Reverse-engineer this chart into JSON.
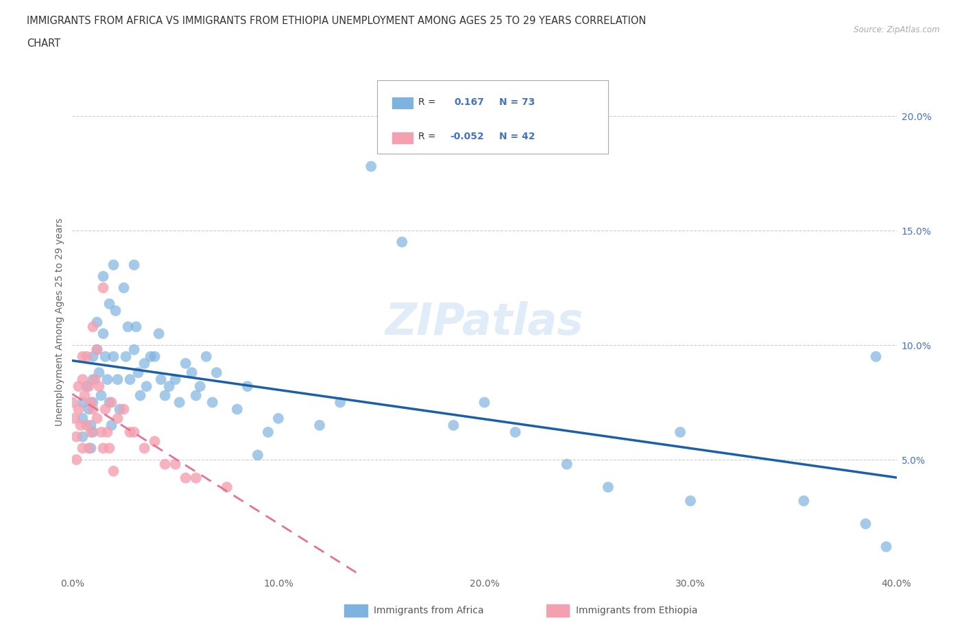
{
  "title_line1": "IMMIGRANTS FROM AFRICA VS IMMIGRANTS FROM ETHIOPIA UNEMPLOYMENT AMONG AGES 25 TO 29 YEARS CORRELATION",
  "title_line2": "CHART",
  "source": "Source: ZipAtlas.com",
  "ylabel": "Unemployment Among Ages 25 to 29 years",
  "xlim": [
    0.0,
    0.4
  ],
  "ylim": [
    0.0,
    0.22
  ],
  "xticks": [
    0.0,
    0.1,
    0.2,
    0.3,
    0.4
  ],
  "yticks": [
    0.05,
    0.1,
    0.15,
    0.2
  ],
  "ytick_labels": [
    "5.0%",
    "10.0%",
    "15.0%",
    "20.0%"
  ],
  "xtick_labels": [
    "0.0%",
    "10.0%",
    "20.0%",
    "30.0%",
    "40.0%"
  ],
  "africa_color": "#7eb3e0",
  "ethiopia_color": "#f4a0b0",
  "africa_line_color": "#1a5fa8",
  "ethiopia_line_color": "#e87090",
  "background_color": "#ffffff",
  "watermark": "ZIPatlas",
  "R_africa": 0.167,
  "N_africa": 73,
  "R_ethiopia": -0.052,
  "N_ethiopia": 42,
  "africa_scatter_x": [
    0.005,
    0.005,
    0.005,
    0.007,
    0.008,
    0.009,
    0.009,
    0.01,
    0.01,
    0.01,
    0.01,
    0.012,
    0.012,
    0.013,
    0.014,
    0.015,
    0.015,
    0.016,
    0.017,
    0.018,
    0.018,
    0.019,
    0.02,
    0.02,
    0.021,
    0.022,
    0.023,
    0.025,
    0.026,
    0.027,
    0.028,
    0.03,
    0.03,
    0.031,
    0.032,
    0.033,
    0.035,
    0.036,
    0.038,
    0.04,
    0.042,
    0.043,
    0.045,
    0.047,
    0.05,
    0.052,
    0.055,
    0.058,
    0.06,
    0.062,
    0.065,
    0.068,
    0.07,
    0.08,
    0.085,
    0.09,
    0.095,
    0.1,
    0.12,
    0.13,
    0.145,
    0.16,
    0.185,
    0.2,
    0.215,
    0.24,
    0.26,
    0.295,
    0.3,
    0.355,
    0.385,
    0.39,
    0.395
  ],
  "africa_scatter_y": [
    0.075,
    0.068,
    0.06,
    0.082,
    0.072,
    0.065,
    0.055,
    0.095,
    0.085,
    0.075,
    0.062,
    0.11,
    0.098,
    0.088,
    0.078,
    0.13,
    0.105,
    0.095,
    0.085,
    0.118,
    0.075,
    0.065,
    0.135,
    0.095,
    0.115,
    0.085,
    0.072,
    0.125,
    0.095,
    0.108,
    0.085,
    0.135,
    0.098,
    0.108,
    0.088,
    0.078,
    0.092,
    0.082,
    0.095,
    0.095,
    0.105,
    0.085,
    0.078,
    0.082,
    0.085,
    0.075,
    0.092,
    0.088,
    0.078,
    0.082,
    0.095,
    0.075,
    0.088,
    0.072,
    0.082,
    0.052,
    0.062,
    0.068,
    0.065,
    0.075,
    0.178,
    0.145,
    0.065,
    0.075,
    0.062,
    0.048,
    0.038,
    0.062,
    0.032,
    0.032,
    0.022,
    0.095,
    0.012
  ],
  "ethiopia_scatter_x": [
    0.0,
    0.001,
    0.002,
    0.002,
    0.003,
    0.003,
    0.004,
    0.005,
    0.005,
    0.005,
    0.006,
    0.007,
    0.007,
    0.008,
    0.008,
    0.009,
    0.009,
    0.01,
    0.01,
    0.011,
    0.012,
    0.012,
    0.013,
    0.014,
    0.015,
    0.015,
    0.016,
    0.017,
    0.018,
    0.019,
    0.02,
    0.022,
    0.025,
    0.028,
    0.03,
    0.035,
    0.04,
    0.045,
    0.05,
    0.055,
    0.06,
    0.075
  ],
  "ethiopia_scatter_y": [
    0.075,
    0.068,
    0.06,
    0.05,
    0.082,
    0.072,
    0.065,
    0.095,
    0.085,
    0.055,
    0.078,
    0.095,
    0.065,
    0.082,
    0.055,
    0.075,
    0.062,
    0.108,
    0.072,
    0.085,
    0.098,
    0.068,
    0.082,
    0.062,
    0.125,
    0.055,
    0.072,
    0.062,
    0.055,
    0.075,
    0.045,
    0.068,
    0.072,
    0.062,
    0.062,
    0.055,
    0.058,
    0.048,
    0.048,
    0.042,
    0.042,
    0.038
  ]
}
